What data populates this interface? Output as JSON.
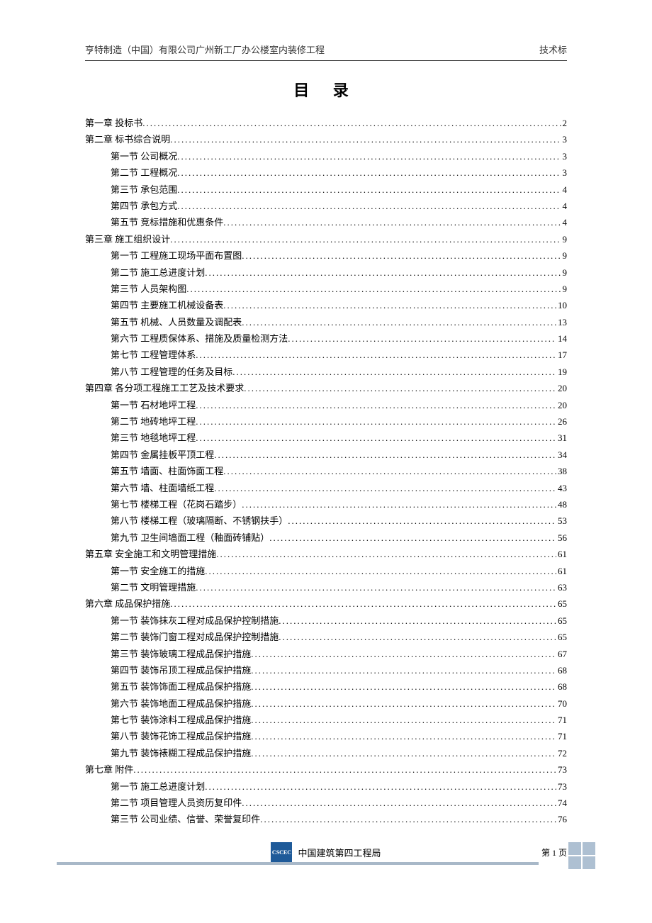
{
  "header": {
    "left": "亨特制造（中国）有限公司广州新工厂办公楼室内装修工程",
    "right": "技术标"
  },
  "title": "目  录",
  "toc": [
    {
      "level": 1,
      "label": "第一章 投标书",
      "page": "2"
    },
    {
      "level": 1,
      "label": "第二章 标书综合说明",
      "page": "3"
    },
    {
      "level": 2,
      "label": "第一节 公司概况",
      "page": "3"
    },
    {
      "level": 2,
      "label": "第二节 工程概况",
      "page": "3"
    },
    {
      "level": 2,
      "label": "第三节 承包范围",
      "page": "4"
    },
    {
      "level": 2,
      "label": "第四节 承包方式",
      "page": "4"
    },
    {
      "level": 2,
      "label": "第五节 竞标措施和优惠条件",
      "page": "4"
    },
    {
      "level": 1,
      "label": "第三章 施工组织设计",
      "page": "9"
    },
    {
      "level": 2,
      "label": "第一节 工程施工现场平面布置图",
      "page": "9"
    },
    {
      "level": 2,
      "label": "第二节 施工总进度计划",
      "page": "9"
    },
    {
      "level": 2,
      "label": "第三节 人员架构图",
      "page": "9"
    },
    {
      "level": 2,
      "label": "第四节 主要施工机械设备表",
      "page": "10"
    },
    {
      "level": 2,
      "label": "第五节 机械、人员数量及调配表",
      "page": "13"
    },
    {
      "level": 2,
      "label": "第六节 工程质保体系、措施及质量检测方法",
      "page": "14"
    },
    {
      "level": 2,
      "label": "第七节 工程管理体系",
      "page": "17"
    },
    {
      "level": 2,
      "label": "第八节 工程管理的任务及目标",
      "page": "19"
    },
    {
      "level": 1,
      "label": "第四章 各分项工程施工工艺及技术要求",
      "page": "20"
    },
    {
      "level": 2,
      "label": "第一节 石材地坪工程",
      "page": "20"
    },
    {
      "level": 2,
      "label": "第二节 地砖地坪工程",
      "page": "26"
    },
    {
      "level": 2,
      "label": "第三节 地毯地坪工程",
      "page": "31"
    },
    {
      "level": 2,
      "label": "第四节 金属挂板平顶工程",
      "page": "34"
    },
    {
      "level": 2,
      "label": "第五节 墙面、柱面饰面工程",
      "page": "38"
    },
    {
      "level": 2,
      "label": "第六节 墙、柱面墙纸工程",
      "page": "43"
    },
    {
      "level": 2,
      "label": "第七节 楼梯工程（花岗石踏步）",
      "page": "48"
    },
    {
      "level": 2,
      "label": "第八节 楼梯工程（玻璃隔断、不锈钢扶手）",
      "page": "53"
    },
    {
      "level": 2,
      "label": "第九节 卫生间墙面工程（釉面砖铺贴）",
      "page": "56"
    },
    {
      "level": 1,
      "label": "第五章 安全施工和文明管理措施",
      "page": "61"
    },
    {
      "level": 2,
      "label": "第一节 安全施工的措施",
      "page": "61"
    },
    {
      "level": 2,
      "label": "第二节 文明管理措施",
      "page": "63"
    },
    {
      "level": 1,
      "label": "第六章 成品保护措施",
      "page": "65"
    },
    {
      "level": 2,
      "label": "第一节 装饰抹灰工程对成品保护控制措施",
      "page": "65"
    },
    {
      "level": 2,
      "label": "第二节 装饰门窗工程对成品保护控制措施",
      "page": "65"
    },
    {
      "level": 2,
      "label": "第三节 装饰玻璃工程成品保护措施",
      "page": "67"
    },
    {
      "level": 2,
      "label": "第四节 装饰吊顶工程成品保护措施",
      "page": "68"
    },
    {
      "level": 2,
      "label": "第五节 装饰饰面工程成品保护措施",
      "page": "68"
    },
    {
      "level": 2,
      "label": "第六节 装饰地面工程成品保护措施",
      "page": "70"
    },
    {
      "level": 2,
      "label": "第七节 装饰涂料工程成品保护措施",
      "page": "71"
    },
    {
      "level": 2,
      "label": "第八节 装饰花饰工程成品保护措施",
      "page": "71"
    },
    {
      "level": 2,
      "label": "第九节 装饰裱糊工程成品保护措施",
      "page": "72"
    },
    {
      "level": 1,
      "label": "第七章 附件",
      "page": "73"
    },
    {
      "level": 2,
      "label": "第一节 施工总进度计划",
      "page": "73"
    },
    {
      "level": 2,
      "label": "第二节 项目管理人员资历复印件",
      "page": "74"
    },
    {
      "level": 2,
      "label": "第三节 公司业绩、信誉、荣誉复印件",
      "page": "76"
    }
  ],
  "footer": {
    "org": "中国建筑第四工程局",
    "pagenum": "第 1 页",
    "logo_text": "CSCEC",
    "logo_bg": "#1e5a99",
    "bar_color": "#a8b8c8"
  }
}
